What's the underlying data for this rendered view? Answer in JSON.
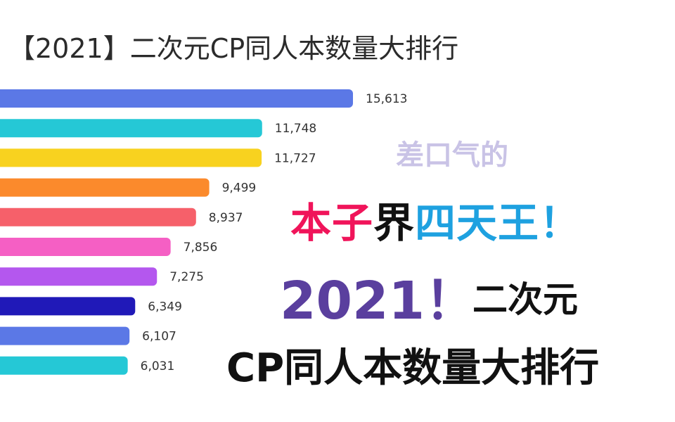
{
  "title": "【2021】二次元CP同人本数量大排行",
  "chart_data": {
    "type": "bar",
    "orientation": "horizontal",
    "values": [
      15613,
      11748,
      11727,
      9499,
      8937,
      7856,
      7275,
      6349,
      6107,
      6031
    ],
    "value_labels": [
      "15,613",
      "11,748",
      "11,727",
      "9,499",
      "8,937",
      "7,856",
      "7,275",
      "6,349",
      "6,107",
      "6,031"
    ],
    "colors": [
      "#5b78e6",
      "#25c8d6",
      "#f8d21f",
      "#fb8a2c",
      "#f6606a",
      "#f55fc4",
      "#b457ee",
      "#2019b8",
      "#5b78e6",
      "#25c8d6"
    ]
  },
  "overlay": {
    "line1": "差口气的",
    "line2_part1": "本子",
    "line2_part2": "界",
    "line2_part3": "四天王！",
    "line3_year": "2021！",
    "line3_rest": "二次元",
    "line4": "CP同人本数量大排行"
  }
}
